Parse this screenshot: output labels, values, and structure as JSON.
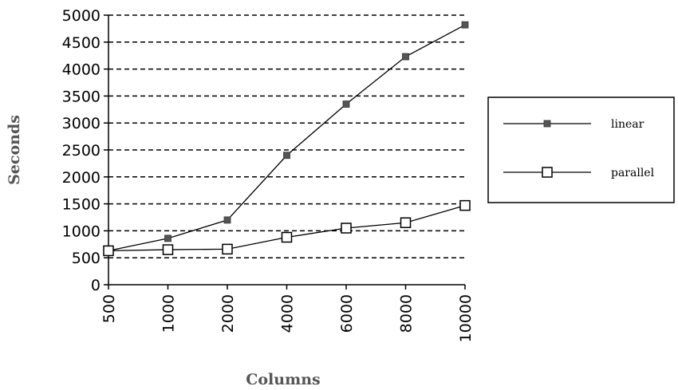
{
  "chart_data": {
    "type": "line",
    "categories": [
      "500",
      "1000",
      "2000",
      "4000",
      "6000",
      "8000",
      "10000"
    ],
    "series": [
      {
        "name": "linear",
        "marker": "filled-square",
        "values": [
          630,
          860,
          1200,
          2400,
          3350,
          4230,
          4820
        ]
      },
      {
        "name": "parallel",
        "marker": "hollow-square",
        "values": [
          630,
          650,
          660,
          880,
          1050,
          1150,
          1470
        ]
      }
    ],
    "xlabel": "Columns",
    "ylabel": "Seconds",
    "ylim": [
      0,
      5000
    ],
    "yticks": [
      "0",
      "500",
      "1000",
      "1500",
      "2000",
      "2500",
      "3000",
      "3500",
      "4000",
      "4500",
      "5000"
    ],
    "grid": "horizontal-dashed",
    "legend_position": "right",
    "colors": {
      "line": "#000000",
      "filled_marker": "#555555",
      "grid": "#000000"
    }
  }
}
